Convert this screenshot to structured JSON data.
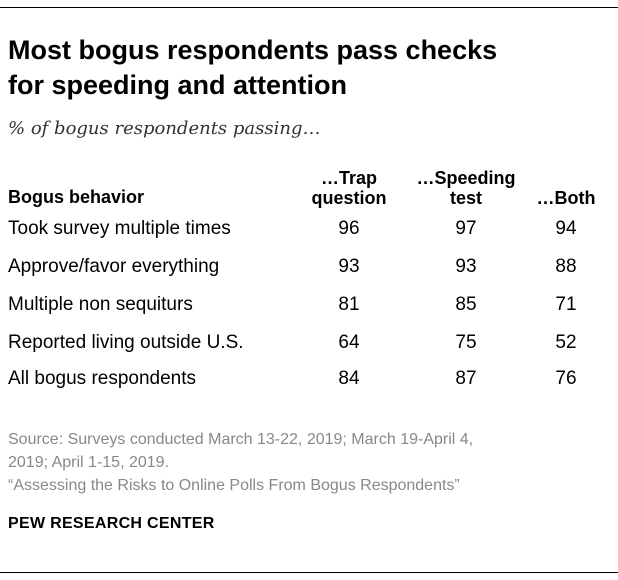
{
  "title_line1": "Most bogus respondents pass checks",
  "title_line2": "for speeding and attention",
  "subtitle": "% of bogus respondents passing…",
  "chart_data": {
    "type": "table",
    "row_header": "Bogus behavior",
    "columns": [
      {
        "line1": "…Trap",
        "line2": "question"
      },
      {
        "line1": "…Speeding",
        "line2": "test"
      },
      {
        "line1": "",
        "line2": "…Both"
      }
    ],
    "rows": [
      {
        "label": "Took survey multiple times",
        "values": [
          "96",
          "97",
          "94"
        ]
      },
      {
        "label": "Approve/favor everything",
        "values": [
          "93",
          "93",
          "88"
        ]
      },
      {
        "label": "Multiple non sequiturs",
        "values": [
          "81",
          "85",
          "71"
        ]
      },
      {
        "label": "Reported living outside U.S.",
        "values": [
          "64",
          "75",
          "52"
        ]
      },
      {
        "label": "All bogus respondents",
        "values": [
          "84",
          "87",
          "76"
        ]
      }
    ]
  },
  "source_line1": "Source: Surveys conducted March 13-22, 2019; March 19-April 4,",
  "source_line2": "2019; April 1-15, 2019.",
  "source_line3": "“Assessing the Risks to Online Polls From Bogus Respondents”",
  "footer": "PEW RESEARCH CENTER"
}
